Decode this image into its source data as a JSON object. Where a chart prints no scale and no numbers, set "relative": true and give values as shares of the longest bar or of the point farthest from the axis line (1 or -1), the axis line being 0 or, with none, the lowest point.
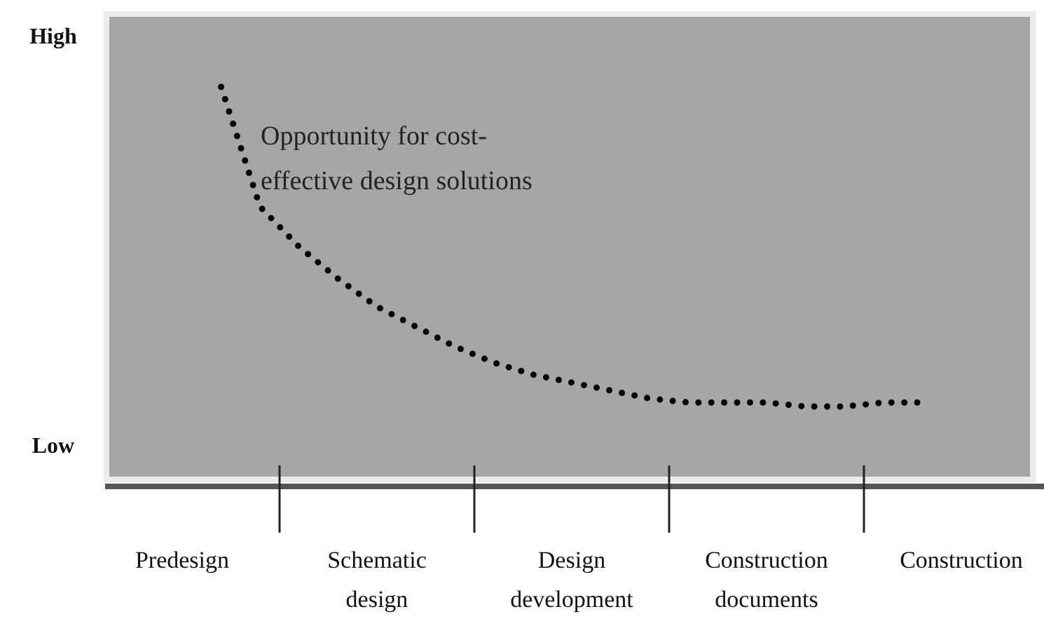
{
  "chart_data": {
    "type": "line",
    "relative": true,
    "line_style": "dotted",
    "marker": "none",
    "grid": false,
    "categories": [
      "Predesign",
      null,
      null,
      null,
      null,
      "Schematic design",
      null,
      null,
      null,
      null,
      "Design development",
      null,
      null,
      null,
      null,
      "Construction documents",
      null,
      null,
      null,
      null,
      "Construction"
    ],
    "series": [
      {
        "color": "#000000",
        "values": [
          null,
          1.0,
          0.7,
          0.6,
          0.52,
          0.45,
          0.4,
          0.35,
          0.31,
          0.28,
          0.26,
          0.24,
          0.22,
          0.21,
          0.21,
          0.21,
          0.2,
          0.2,
          0.21,
          0.21,
          null
        ]
      }
    ],
    "annotations": [
      "Opportunity for cost-effective design solutions",
      "High",
      "Low"
    ]
  }
}
